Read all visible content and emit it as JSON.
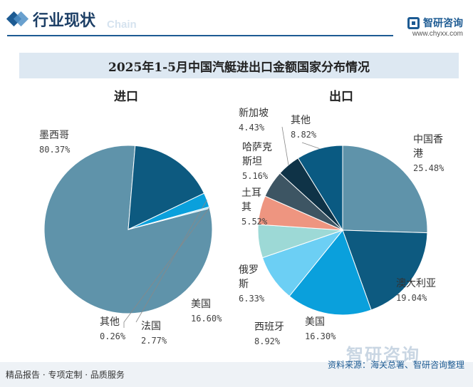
{
  "header": {
    "title": "行业现状",
    "ghost_text": "Chain",
    "brand_name": "智研咨询",
    "brand_url": "www.chyxx.com"
  },
  "chart_title": "2025年1-5月中国汽艇进出口金额国家分布情况",
  "import_label": "进口",
  "export_label": "出口",
  "chart_data": [
    {
      "type": "pie",
      "title": "进口",
      "slices": [
        {
          "name": "墨西哥",
          "value": 80.37,
          "label": "80.37%",
          "color": "#5f93aa"
        },
        {
          "name": "美国",
          "value": 16.6,
          "label": "16.60%",
          "color": "#0d5a80"
        },
        {
          "name": "法国",
          "value": 2.77,
          "label": "2.77%",
          "color": "#0aa0dc"
        },
        {
          "name": "其他",
          "value": 0.26,
          "label": "0.26%",
          "color": "#8fd6f2"
        }
      ]
    },
    {
      "type": "pie",
      "title": "出口",
      "slices": [
        {
          "name": "中国香港",
          "value": 25.48,
          "label": "25.48%",
          "color": "#5f93aa"
        },
        {
          "name": "澳大利亚",
          "value": 19.04,
          "label": "19.04%",
          "color": "#0d5a80"
        },
        {
          "name": "美国",
          "value": 16.3,
          "label": "16.30%",
          "color": "#0aa0dc"
        },
        {
          "name": "西班牙",
          "value": 8.92,
          "label": "8.92%",
          "color": "#6ccff4"
        },
        {
          "name": "俄罗斯",
          "value": 6.33,
          "label": "6.33%",
          "color": "#9dd9d6"
        },
        {
          "name": "土耳其",
          "value": 5.52,
          "label": "5.52%",
          "color": "#ee9580"
        },
        {
          "name": "哈萨克斯坦",
          "value": 5.16,
          "label": "5.16%",
          "color": "#3d5563"
        },
        {
          "name": "新加坡",
          "value": 4.43,
          "label": "4.43%",
          "color": "#0f3347"
        },
        {
          "name": "其他",
          "value": 8.82,
          "label": "8.82%",
          "color": "#0a5a82"
        }
      ]
    }
  ],
  "footer": {
    "left": "精品报告 · 专项定制 · 品质服务",
    "right": "资料来源：海关总署、智研咨询整理"
  },
  "watermark": "智研咨询"
}
